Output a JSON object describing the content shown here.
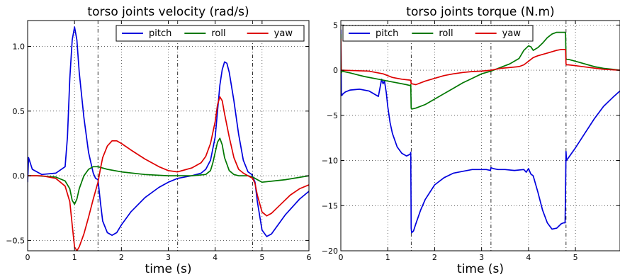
{
  "chart_data": [
    {
      "type": "line",
      "title": "torso joints velocity (rad/s)",
      "xlabel": "time (s)",
      "ylabel": "",
      "xlim": [
        0,
        6
      ],
      "ylim": [
        -0.58,
        1.2
      ],
      "xticks": [
        "0",
        "1",
        "2",
        "3",
        "4",
        "5",
        "6"
      ],
      "xtick_values": [
        0,
        1,
        2,
        3,
        4,
        5,
        6
      ],
      "yticks": [
        "1.0",
        "0.5",
        "0.0",
        "−0.5"
      ],
      "ytick_values": [
        1.0,
        0.5,
        0.0,
        -0.5
      ],
      "grid": true,
      "vertical_lines": [
        1.5,
        3.2,
        4.8
      ],
      "legend_position": "top-right",
      "series": [
        {
          "name": "pitch",
          "color": "#0000dd",
          "x": [
            0,
            0.02,
            0.1,
            0.3,
            0.6,
            0.8,
            0.85,
            0.9,
            0.95,
            1.0,
            1.05,
            1.1,
            1.2,
            1.3,
            1.4,
            1.45,
            1.5,
            1.55,
            1.6,
            1.7,
            1.8,
            1.9,
            2.0,
            2.2,
            2.5,
            2.8,
            3.0,
            3.2,
            3.5,
            3.7,
            3.8,
            3.9,
            4.0,
            4.05,
            4.1,
            4.15,
            4.2,
            4.25,
            4.3,
            4.4,
            4.5,
            4.6,
            4.7,
            4.78,
            4.85,
            4.9,
            5.0,
            5.1,
            5.2,
            5.3,
            5.5,
            5.8,
            6.0
          ],
          "y": [
            -0.05,
            0.14,
            0.05,
            0.01,
            0.02,
            0.07,
            0.3,
            0.75,
            1.05,
            1.15,
            1.05,
            0.8,
            0.45,
            0.18,
            0.02,
            -0.02,
            -0.03,
            -0.2,
            -0.35,
            -0.44,
            -0.46,
            -0.44,
            -0.38,
            -0.28,
            -0.17,
            -0.09,
            -0.05,
            -0.02,
            0.0,
            0.02,
            0.05,
            0.12,
            0.3,
            0.5,
            0.7,
            0.82,
            0.88,
            0.87,
            0.8,
            0.58,
            0.32,
            0.12,
            0.03,
            0.01,
            -0.05,
            -0.2,
            -0.42,
            -0.47,
            -0.45,
            -0.4,
            -0.3,
            -0.18,
            -0.12
          ]
        },
        {
          "name": "roll",
          "color": "#007700",
          "x": [
            0,
            0.2,
            0.6,
            0.8,
            0.9,
            0.95,
            1.0,
            1.05,
            1.1,
            1.2,
            1.3,
            1.4,
            1.5,
            1.7,
            2.0,
            2.5,
            3.0,
            3.5,
            3.8,
            3.9,
            3.95,
            4.0,
            4.05,
            4.1,
            4.15,
            4.2,
            4.3,
            4.4,
            4.5,
            4.7,
            4.8,
            4.9,
            5.0,
            5.5,
            6.0
          ],
          "y": [
            0.0,
            0.0,
            -0.01,
            -0.04,
            -0.1,
            -0.19,
            -0.22,
            -0.18,
            -0.1,
            0.0,
            0.05,
            0.07,
            0.07,
            0.05,
            0.03,
            0.01,
            0.0,
            0.0,
            0.01,
            0.04,
            0.1,
            0.18,
            0.26,
            0.29,
            0.24,
            0.14,
            0.04,
            0.01,
            0.0,
            0.0,
            -0.01,
            -0.03,
            -0.05,
            -0.03,
            0.0
          ]
        },
        {
          "name": "yaw",
          "color": "#dd0000",
          "x": [
            0,
            0.3,
            0.6,
            0.8,
            0.9,
            0.95,
            1.0,
            1.05,
            1.1,
            1.2,
            1.3,
            1.4,
            1.5,
            1.55,
            1.6,
            1.7,
            1.8,
            1.9,
            2.0,
            2.2,
            2.5,
            2.8,
            3.0,
            3.2,
            3.5,
            3.7,
            3.8,
            3.9,
            4.0,
            4.05,
            4.1,
            4.15,
            4.2,
            4.3,
            4.4,
            4.5,
            4.6,
            4.7,
            4.8,
            4.85,
            4.9,
            5.0,
            5.1,
            5.2,
            5.4,
            5.6,
            5.8,
            6.0
          ],
          "y": [
            0.0,
            0.0,
            -0.02,
            -0.08,
            -0.2,
            -0.38,
            -0.55,
            -0.58,
            -0.55,
            -0.45,
            -0.32,
            -0.18,
            -0.05,
            0.05,
            0.14,
            0.23,
            0.27,
            0.27,
            0.25,
            0.2,
            0.13,
            0.07,
            0.04,
            0.03,
            0.06,
            0.1,
            0.15,
            0.25,
            0.42,
            0.55,
            0.61,
            0.58,
            0.48,
            0.3,
            0.14,
            0.05,
            0.02,
            0.0,
            -0.02,
            -0.06,
            -0.15,
            -0.28,
            -0.31,
            -0.29,
            -0.22,
            -0.15,
            -0.1,
            -0.07
          ]
        }
      ]
    },
    {
      "type": "line",
      "title": "torso joints torque (N.m)",
      "xlabel": "time (s)",
      "ylabel": "",
      "xlim": [
        0,
        5.95
      ],
      "ylim": [
        -20,
        5.5
      ],
      "xticks": [
        "0",
        "1",
        "2",
        "3",
        "4",
        "5"
      ],
      "xtick_values": [
        0,
        1,
        2,
        3,
        4,
        5
      ],
      "yticks": [
        "5",
        "0",
        "−5",
        "−10",
        "−15",
        "−20"
      ],
      "ytick_values": [
        5,
        0,
        -5,
        -10,
        -15,
        -20
      ],
      "grid": true,
      "vertical_lines": [
        1.5,
        3.2,
        4.8
      ],
      "legend_position": "top-right",
      "series": [
        {
          "name": "pitch",
          "color": "#0000dd",
          "x": [
            0,
            0.005,
            0.01,
            0.02,
            0.05,
            0.1,
            0.2,
            0.4,
            0.6,
            0.8,
            0.87,
            0.9,
            0.93,
            0.97,
            1.0,
            1.05,
            1.1,
            1.2,
            1.3,
            1.4,
            1.48,
            1.49,
            1.5,
            1.51,
            1.55,
            1.6,
            1.7,
            1.8,
            2.0,
            2.2,
            2.4,
            2.6,
            2.8,
            3.0,
            3.1,
            3.19,
            3.2,
            3.25,
            3.35,
            3.5,
            3.7,
            3.9,
            3.95,
            4.0,
            4.05,
            4.1,
            4.2,
            4.3,
            4.4,
            4.5,
            4.6,
            4.7,
            4.75,
            4.78,
            4.79,
            4.8,
            4.81,
            4.85,
            5.0,
            5.2,
            5.4,
            5.6,
            5.8,
            5.95
          ],
          "y": [
            4.5,
            2.0,
            -2.5,
            -2.8,
            -2.6,
            -2.4,
            -2.2,
            -2.1,
            -2.3,
            -2.9,
            -1.0,
            -1.5,
            -1.2,
            -2.5,
            -4.0,
            -5.8,
            -7.0,
            -8.5,
            -9.2,
            -9.5,
            -9.3,
            -9.1,
            -17.5,
            -18.0,
            -17.8,
            -17.0,
            -15.5,
            -14.3,
            -12.7,
            -11.9,
            -11.4,
            -11.2,
            -11.0,
            -11.0,
            -11.0,
            -11.1,
            -10.8,
            -10.9,
            -11.0,
            -11.0,
            -11.1,
            -11.0,
            -11.3,
            -10.9,
            -11.5,
            -11.7,
            -13.5,
            -15.5,
            -16.9,
            -17.6,
            -17.5,
            -17.0,
            -16.9,
            -16.9,
            -13.0,
            -9.0,
            -10.0,
            -9.7,
            -8.6,
            -7.0,
            -5.4,
            -4.0,
            -3.0,
            -2.3
          ]
        },
        {
          "name": "roll",
          "color": "#007700",
          "x": [
            0,
            0.005,
            0.01,
            0.02,
            0.2,
            0.5,
            0.8,
            1.0,
            1.2,
            1.4,
            1.48,
            1.49,
            1.5,
            1.51,
            1.6,
            1.8,
            2.0,
            2.2,
            2.4,
            2.6,
            2.8,
            3.0,
            3.2,
            3.4,
            3.6,
            3.8,
            3.9,
            4.0,
            4.05,
            4.1,
            4.2,
            4.3,
            4.4,
            4.5,
            4.6,
            4.7,
            4.78,
            4.79,
            4.8,
            4.81,
            4.85,
            5.0,
            5.2,
            5.4,
            5.6,
            5.8,
            5.95
          ],
          "y": [
            4.0,
            1.0,
            -0.3,
            -0.1,
            -0.3,
            -0.7,
            -1.0,
            -1.2,
            -1.4,
            -1.6,
            -1.7,
            -1.6,
            -4.2,
            -4.3,
            -4.2,
            -3.8,
            -3.2,
            -2.6,
            -2.0,
            -1.4,
            -0.9,
            -0.4,
            -0.1,
            0.3,
            0.7,
            1.3,
            2.2,
            2.7,
            2.6,
            2.2,
            2.5,
            3.0,
            3.6,
            4.0,
            4.2,
            4.2,
            4.2,
            4.0,
            1.3,
            1.2,
            1.2,
            1.0,
            0.7,
            0.4,
            0.2,
            0.1,
            0.0
          ]
        },
        {
          "name": "yaw",
          "color": "#dd0000",
          "x": [
            0,
            0.005,
            0.01,
            0.02,
            0.3,
            0.6,
            0.9,
            1.1,
            1.3,
            1.48,
            1.49,
            1.5,
            1.51,
            1.6,
            1.8,
            2.0,
            2.2,
            2.4,
            2.6,
            2.8,
            3.0,
            3.2,
            3.4,
            3.6,
            3.8,
            3.9,
            4.0,
            4.1,
            4.2,
            4.4,
            4.6,
            4.7,
            4.78,
            4.79,
            4.8,
            4.81,
            4.85,
            5.0,
            5.3,
            5.6,
            5.95
          ],
          "y": [
            3.5,
            0.5,
            0.0,
            0.0,
            -0.05,
            -0.1,
            -0.4,
            -0.8,
            -1.0,
            -1.1,
            -1.1,
            -1.5,
            -1.5,
            -1.6,
            -1.2,
            -0.9,
            -0.6,
            -0.4,
            -0.25,
            -0.15,
            -0.1,
            0.0,
            0.2,
            0.3,
            0.4,
            0.6,
            1.0,
            1.4,
            1.6,
            1.9,
            2.2,
            2.3,
            2.3,
            2.3,
            0.7,
            0.6,
            0.6,
            0.5,
            0.3,
            0.1,
            0.0
          ]
        }
      ]
    }
  ]
}
